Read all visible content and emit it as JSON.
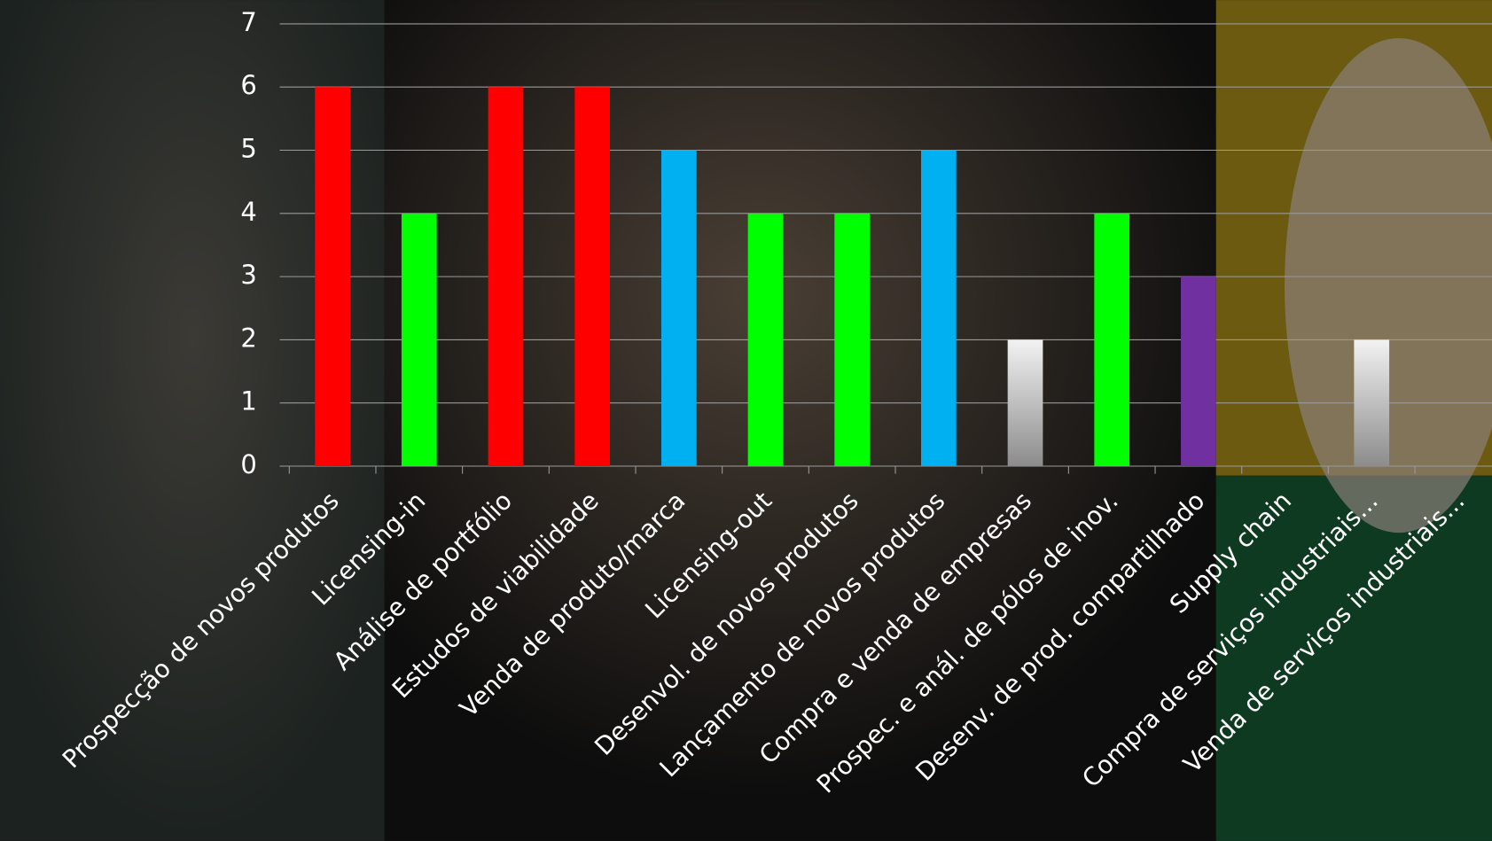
{
  "chart_data": {
    "type": "bar",
    "categories": [
      "Prospecção de novos produtos",
      "Licensing-in",
      "Análise de portfólio",
      "Estudos de viabilidade",
      "Venda de produto/marca",
      "Licensing-out",
      "Desenvol. de novos produtos",
      "Lançamento de novos produtos",
      "Compra e venda de empresas",
      "Prospec. e anál. de pólos de inov.",
      "Desenv. de prod. compartilhado",
      "Supply chain",
      "Compra de serviços industriais...",
      "Venda de serviços industriais..."
    ],
    "values": [
      6,
      4,
      6,
      6,
      5,
      4,
      4,
      5,
      2,
      4,
      3,
      0,
      2,
      0
    ],
    "colors": [
      "#ff0000",
      "#00ff00",
      "#ff0000",
      "#ff0000",
      "#00b0f0",
      "#00ff00",
      "#00ff00",
      "#00b0f0",
      "#c8c8c8",
      "#00ff00",
      "#7030a0",
      "#c8c8c8",
      "#c8c8c8",
      "#c8c8c8"
    ],
    "ylim": [
      0,
      7
    ],
    "yticks": [
      0,
      1,
      2,
      3,
      4,
      5,
      6,
      7
    ],
    "grid": true
  }
}
